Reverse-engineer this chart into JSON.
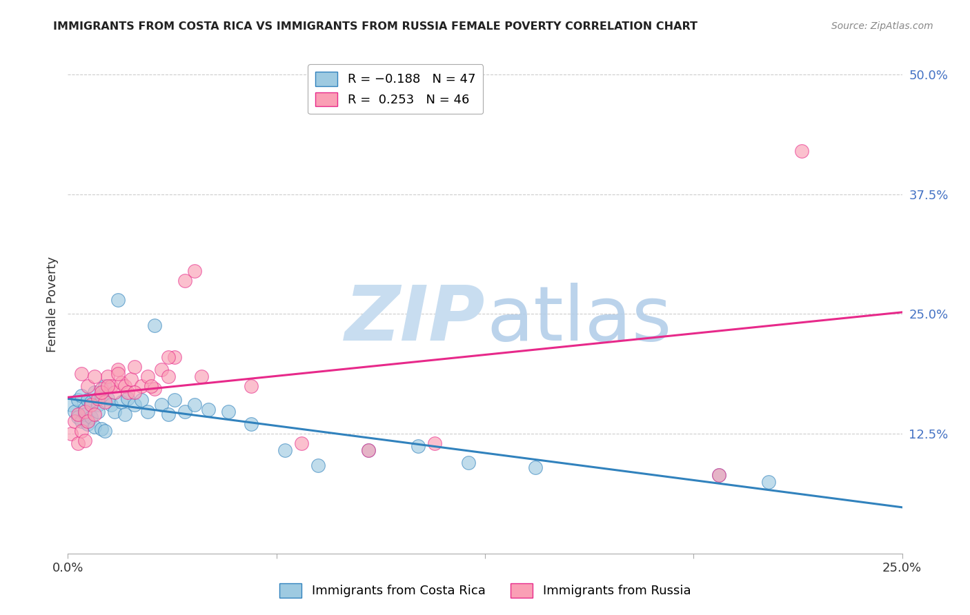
{
  "title": "IMMIGRANTS FROM COSTA RICA VS IMMIGRANTS FROM RUSSIA FEMALE POVERTY CORRELATION CHART",
  "source": "Source: ZipAtlas.com",
  "ylabel": "Female Poverty",
  "ytick_labels": [
    "12.5%",
    "25.0%",
    "37.5%",
    "50.0%"
  ],
  "ytick_values": [
    0.125,
    0.25,
    0.375,
    0.5
  ],
  "xlim": [
    0.0,
    0.25
  ],
  "ylim": [
    0.0,
    0.52
  ],
  "legend_title_blue": "Immigrants from Costa Rica",
  "legend_title_pink": "Immigrants from Russia",
  "blue_scatter_x": [
    0.001,
    0.002,
    0.003,
    0.003,
    0.004,
    0.004,
    0.005,
    0.005,
    0.006,
    0.006,
    0.007,
    0.007,
    0.008,
    0.008,
    0.009,
    0.009,
    0.01,
    0.01,
    0.011,
    0.011,
    0.012,
    0.013,
    0.014,
    0.015,
    0.016,
    0.017,
    0.018,
    0.02,
    0.022,
    0.024,
    0.026,
    0.028,
    0.03,
    0.032,
    0.035,
    0.038,
    0.042,
    0.048,
    0.055,
    0.065,
    0.075,
    0.09,
    0.105,
    0.12,
    0.14,
    0.195,
    0.21
  ],
  "blue_scatter_y": [
    0.155,
    0.148,
    0.16,
    0.142,
    0.165,
    0.138,
    0.152,
    0.145,
    0.16,
    0.135,
    0.158,
    0.142,
    0.168,
    0.132,
    0.155,
    0.148,
    0.165,
    0.13,
    0.175,
    0.128,
    0.162,
    0.155,
    0.148,
    0.265,
    0.158,
    0.145,
    0.162,
    0.155,
    0.16,
    0.148,
    0.238,
    0.155,
    0.145,
    0.16,
    0.148,
    0.155,
    0.15,
    0.148,
    0.135,
    0.108,
    0.092,
    0.108,
    0.112,
    0.095,
    0.09,
    0.082,
    0.075
  ],
  "pink_scatter_x": [
    0.001,
    0.002,
    0.003,
    0.003,
    0.004,
    0.005,
    0.005,
    0.006,
    0.007,
    0.008,
    0.009,
    0.01,
    0.011,
    0.012,
    0.013,
    0.014,
    0.015,
    0.016,
    0.017,
    0.018,
    0.019,
    0.02,
    0.022,
    0.024,
    0.026,
    0.028,
    0.03,
    0.032,
    0.035,
    0.038,
    0.004,
    0.006,
    0.008,
    0.01,
    0.012,
    0.015,
    0.02,
    0.025,
    0.03,
    0.04,
    0.055,
    0.07,
    0.09,
    0.11,
    0.195,
    0.22
  ],
  "pink_scatter_y": [
    0.125,
    0.138,
    0.115,
    0.145,
    0.128,
    0.118,
    0.148,
    0.138,
    0.155,
    0.145,
    0.162,
    0.172,
    0.158,
    0.185,
    0.175,
    0.168,
    0.192,
    0.178,
    0.175,
    0.168,
    0.182,
    0.195,
    0.175,
    0.185,
    0.172,
    0.192,
    0.185,
    0.205,
    0.285,
    0.295,
    0.188,
    0.175,
    0.185,
    0.168,
    0.175,
    0.188,
    0.168,
    0.175,
    0.205,
    0.185,
    0.175,
    0.115,
    0.108,
    0.115,
    0.082,
    0.42
  ],
  "blue_line_color": "#3182bd",
  "pink_line_color": "#e7298a",
  "blue_dot_color": "#9ecae1",
  "pink_dot_color": "#fa9fb5",
  "grid_color": "#cccccc",
  "tick_color": "#4472c4"
}
